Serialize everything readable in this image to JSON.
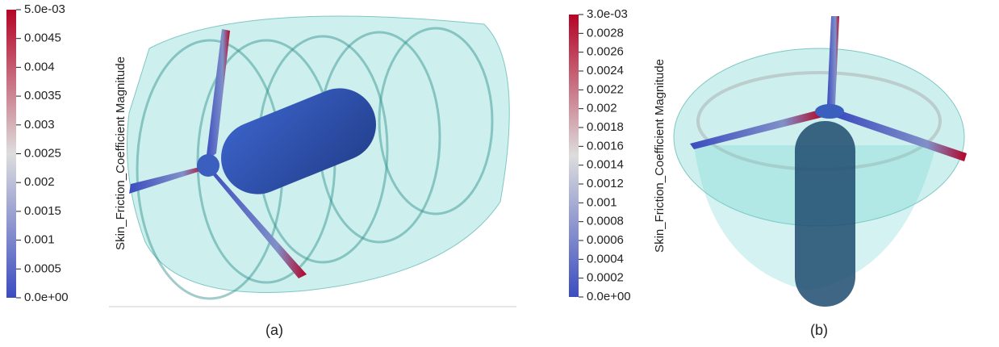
{
  "panels": [
    {
      "colorbar": {
        "title": "Skin_Friction_Coefficient Magnitude",
        "labels": [
          "5.0e-03",
          "0.0045",
          "0.004",
          "0.0035",
          "0.003",
          "0.0025",
          "0.002",
          "0.0015",
          "0.001",
          "0.0005",
          "0.0e+00"
        ]
      },
      "caption": "(a)"
    },
    {
      "colorbar": {
        "title": "Skin_Friction_Coefficient Magnitude",
        "labels": [
          "3.0e-03",
          "0.0028",
          "0.0026",
          "0.0024",
          "0.0022",
          "0.002",
          "0.0018",
          "0.0016",
          "0.0014",
          "0.0012",
          "0.001",
          "0.0008",
          "0.0006",
          "0.0004",
          "0.0002",
          "0.0e+00"
        ]
      },
      "caption": "(b)"
    }
  ]
}
